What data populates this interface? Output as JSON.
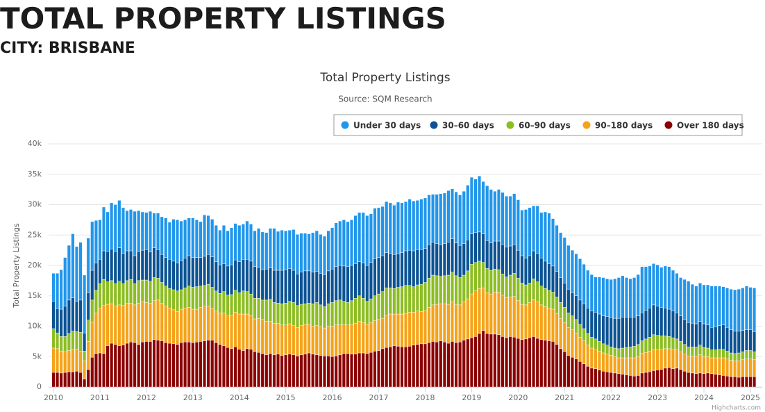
{
  "header": {
    "title": "TOTAL PROPERTY LISTINGS",
    "city": "CITY: BRISBANE"
  },
  "chart_data": {
    "type": "stacked_bar",
    "title": "Total Property Listings",
    "subtitle": "Source: SQM Research",
    "y_label": "Total Property Listings",
    "credit": "Highcharts.com",
    "categories": [
      "2010",
      null,
      null,
      null,
      null,
      null,
      null,
      null,
      null,
      null,
      null,
      null,
      "2011",
      null,
      null,
      null,
      null,
      null,
      null,
      null,
      null,
      null,
      null,
      null,
      "2012",
      null,
      null,
      null,
      null,
      null,
      null,
      null,
      null,
      null,
      null,
      null,
      "2013",
      null,
      null,
      null,
      null,
      null,
      null,
      null,
      null,
      null,
      null,
      null,
      "2014",
      null,
      null,
      null,
      null,
      null,
      null,
      null,
      null,
      null,
      null,
      null,
      "2015",
      null,
      null,
      null,
      null,
      null,
      null,
      null,
      null,
      null,
      null,
      null,
      "2016",
      null,
      null,
      null,
      null,
      null,
      null,
      null,
      null,
      null,
      null,
      null,
      "2017",
      null,
      null,
      null,
      null,
      null,
      null,
      null,
      null,
      null,
      null,
      null,
      "2018",
      null,
      null,
      null,
      null,
      null,
      null,
      null,
      null,
      null,
      null,
      null,
      "2019",
      null,
      null,
      null,
      null,
      null,
      null,
      null,
      null,
      null,
      null,
      null,
      "2020",
      null,
      null,
      null,
      null,
      null,
      null,
      null,
      null,
      null,
      null,
      null,
      "2021",
      null,
      null,
      null,
      null,
      null,
      null,
      null,
      null,
      null,
      null,
      null,
      "2022",
      null,
      null,
      null,
      null,
      null,
      null,
      null,
      null,
      null,
      null,
      null,
      "2023",
      null,
      null,
      null,
      null,
      null,
      null,
      null,
      null,
      null,
      null,
      null,
      "2024",
      null,
      null,
      null,
      null,
      null,
      null,
      null,
      null,
      null,
      null,
      null,
      "2025",
      null
    ],
    "series": [
      {
        "name": "Under 30 days",
        "color": "#2196eb",
        "values": [
          4600,
          5800,
          6500,
          8000,
          9000,
          10500,
          9000,
          9500,
          9500,
          9000,
          8000,
          7000,
          6500,
          7200,
          6500,
          7600,
          7700,
          7800,
          7500,
          6600,
          6800,
          7300,
          6700,
          6300,
          6100,
          6700,
          5700,
          6000,
          6200,
          6500,
          6100,
          6900,
          7100,
          6500,
          6300,
          6200,
          6500,
          6200,
          5900,
          6800,
          6400,
          6200,
          6000,
          5700,
          6300,
          5800,
          6100,
          6000,
          6000,
          5800,
          6300,
          6100,
          5900,
          6400,
          6200,
          6000,
          6500,
          6900,
          6400,
          6600,
          6400,
          6300,
          6700,
          6500,
          6400,
          6200,
          6100,
          6500,
          6700,
          6400,
          6300,
          6600,
          6800,
          7200,
          7300,
          7600,
          7400,
          7500,
          7900,
          8100,
          8300,
          8200,
          8000,
          8300,
          8200,
          8100,
          8400,
          8300,
          8100,
          8500,
          8200,
          8100,
          8400,
          8200,
          8100,
          8300,
          8300,
          8200,
          7900,
          8100,
          8400,
          8300,
          8500,
          8200,
          8400,
          8300,
          8600,
          9000,
          9300,
          8800,
          9200,
          8600,
          9000,
          8800,
          8200,
          8500,
          8600,
          8400,
          8200,
          8400,
          8300,
          7500,
          8000,
          7900,
          7400,
          7800,
          7500,
          8100,
          8300,
          7800,
          7600,
          7400,
          7500,
          7200,
          7000,
          6900,
          6800,
          6500,
          6200,
          6000,
          5800,
          6100,
          6300,
          6200,
          6300,
          6500,
          6700,
          6800,
          6500,
          6300,
          6500,
          6800,
          7600,
          7200,
          6900,
          6800,
          6800,
          6600,
          6900,
          7000,
          6700,
          6500,
          6300,
          6600,
          6800,
          6400,
          6200,
          6300,
          6400,
          6600,
          6800,
          6700,
          6500,
          6300,
          6500,
          6700,
          6800,
          6900,
          7000,
          7200,
          7000,
          7200
        ]
      },
      {
        "name": "30–60 days",
        "color": "#0b5394",
        "values": [
          4500,
          4000,
          4500,
          5000,
          5500,
          5500,
          5000,
          5300,
          3000,
          4500,
          4900,
          4500,
          4000,
          4700,
          5000,
          5200,
          5300,
          5500,
          5000,
          4900,
          4700,
          4600,
          4800,
          4900,
          5000,
          4800,
          4900,
          4700,
          4600,
          4700,
          4800,
          4700,
          4600,
          4800,
          4900,
          5000,
          4900,
          4800,
          4700,
          4800,
          4900,
          5000,
          4800,
          4700,
          4600,
          4800,
          4900,
          5000,
          5100,
          5200,
          5300,
          5400,
          5200,
          5100,
          5000,
          5100,
          5200,
          5300,
          5400,
          5500,
          5500,
          5400,
          5300,
          5200,
          5300,
          5400,
          5300,
          5200,
          5100,
          5200,
          5300,
          5400,
          5500,
          5600,
          5700,
          5800,
          5900,
          5800,
          5700,
          5600,
          5800,
          5900,
          6000,
          6100,
          6000,
          5900,
          5800,
          5700,
          5600,
          5500,
          5600,
          5700,
          5800,
          5900,
          5800,
          5700,
          5600,
          5500,
          5400,
          5300,
          5200,
          5300,
          5400,
          5500,
          5400,
          5300,
          5200,
          5100,
          5000,
          4900,
          4800,
          4700,
          4600,
          4500,
          4600,
          4700,
          4800,
          4900,
          4800,
          4700,
          4600,
          4500,
          4400,
          4500,
          4600,
          4700,
          4600,
          4500,
          4400,
          4300,
          4200,
          4100,
          4000,
          3900,
          3800,
          3900,
          4000,
          4100,
          4200,
          4300,
          4400,
          4500,
          4600,
          4700,
          4800,
          4900,
          5000,
          5100,
          5000,
          4900,
          4800,
          4700,
          4600,
          4700,
          4800,
          4900,
          4800,
          4700,
          4600,
          4500,
          4400,
          4300,
          4200,
          4100,
          4000,
          3900,
          3800,
          3900,
          3900,
          3800,
          3700,
          3800,
          3900,
          4000,
          3900,
          3800,
          3700,
          3600,
          3500,
          3400,
          3400,
          3300
        ]
      },
      {
        "name": "60–90 days",
        "color": "#8dbd24",
        "values": [
          3200,
          2600,
          2400,
          2500,
          2800,
          3000,
          2900,
          3100,
          1600,
          3500,
          3600,
          3700,
          4000,
          4300,
          3700,
          3800,
          3700,
          3900,
          3600,
          3700,
          3900,
          3500,
          3700,
          3600,
          3700,
          3600,
          3800,
          3600,
          3400,
          3300,
          3200,
          3300,
          3400,
          3200,
          3300,
          3500,
          3600,
          3700,
          3500,
          3400,
          3600,
          3400,
          3300,
          3200,
          3500,
          3300,
          3400,
          3600,
          3500,
          3800,
          3700,
          3600,
          3400,
          3300,
          3200,
          3500,
          3600,
          3400,
          3300,
          3500,
          3600,
          3700,
          3800,
          3600,
          3500,
          3400,
          3500,
          3700,
          3800,
          3600,
          3500,
          3700,
          3900,
          4000,
          4100,
          3800,
          3700,
          3900,
          4100,
          4200,
          4000,
          3800,
          3900,
          4100,
          4200,
          4400,
          4500,
          4300,
          4200,
          4400,
          4500,
          4600,
          4400,
          4200,
          4300,
          4500,
          4600,
          4800,
          4900,
          4700,
          4500,
          4600,
          4800,
          4900,
          4700,
          4500,
          4400,
          4600,
          4900,
          4700,
          4500,
          4200,
          4000,
          3900,
          3800,
          3700,
          3500,
          3400,
          3600,
          3800,
          3700,
          3500,
          3300,
          3200,
          3400,
          3300,
          3100,
          3000,
          2900,
          2800,
          2700,
          2600,
          2500,
          2400,
          2300,
          2200,
          2100,
          2000,
          1900,
          1800,
          1700,
          1600,
          1500,
          1500,
          1400,
          1400,
          1500,
          1600,
          1700,
          1800,
          1900,
          2000,
          2100,
          2200,
          2300,
          2400,
          2300,
          2200,
          2100,
          2000,
          1900,
          1800,
          1700,
          1600,
          1500,
          1500,
          1500,
          1600,
          1500,
          1400,
          1300,
          1300,
          1400,
          1400,
          1300,
          1200,
          1200,
          1300,
          1300,
          1400,
          1400,
          1300
        ]
      },
      {
        "name": "90–180 days",
        "color": "#f5a31a",
        "values": [
          4000,
          3900,
          3600,
          3400,
          3500,
          3700,
          3600,
          3500,
          3000,
          4600,
          5800,
          6700,
          7400,
          7900,
          6800,
          6500,
          6300,
          6700,
          6500,
          6600,
          6400,
          6200,
          6800,
          6600,
          6400,
          6300,
          6400,
          6600,
          6200,
          6000,
          5800,
          5600,
          5400,
          5500,
          5600,
          5700,
          5500,
          5400,
          5600,
          5700,
          5600,
          5300,
          5200,
          5200,
          5400,
          5300,
          5500,
          5700,
          5800,
          6000,
          5700,
          5500,
          5400,
          5600,
          5600,
          5500,
          5300,
          5200,
          5100,
          5000,
          4900,
          5000,
          4800,
          4700,
          4800,
          4900,
          4700,
          4600,
          4800,
          4700,
          4600,
          4900,
          5000,
          5100,
          4900,
          4800,
          4700,
          4900,
          5100,
          5200,
          5000,
          4800,
          4900,
          5000,
          5100,
          5000,
          5300,
          5400,
          5200,
          5300,
          5400,
          5500,
          5600,
          5400,
          5500,
          5300,
          5500,
          5800,
          6000,
          6200,
          6100,
          6300,
          6400,
          6500,
          6300,
          6100,
          6300,
          6600,
          7200,
          7500,
          7400,
          7000,
          6700,
          6600,
          6900,
          7000,
          6800,
          6600,
          6500,
          6700,
          6200,
          5800,
          5600,
          5800,
          6100,
          6000,
          5700,
          5500,
          5400,
          5300,
          5100,
          5000,
          4800,
          4600,
          4500,
          4300,
          4000,
          3800,
          3500,
          3300,
          3200,
          3100,
          3000,
          2900,
          2800,
          2700,
          2600,
          2700,
          2800,
          2900,
          3000,
          3100,
          3200,
          3300,
          3400,
          3500,
          3400,
          3300,
          3200,
          3100,
          3200,
          3000,
          2900,
          2800,
          2700,
          2800,
          2900,
          3000,
          2800,
          2700,
          2600,
          2700,
          2800,
          2900,
          2800,
          2700,
          2600,
          2700,
          2800,
          2900,
          2900,
          2800
        ]
      },
      {
        "name": "Over 180 days",
        "color": "#8b0000",
        "values": [
          2400,
          2400,
          2300,
          2400,
          2500,
          2500,
          2600,
          2400,
          1300,
          2900,
          4900,
          5500,
          5600,
          5500,
          6800,
          7200,
          7000,
          6800,
          6900,
          7200,
          7400,
          7300,
          7000,
          7400,
          7500,
          7500,
          7800,
          7700,
          7600,
          7300,
          7200,
          7100,
          7000,
          7300,
          7400,
          7400,
          7300,
          7400,
          7500,
          7600,
          7700,
          7700,
          7300,
          7000,
          6800,
          6500,
          6300,
          6600,
          6200,
          6000,
          6300,
          6200,
          5800,
          5700,
          5500,
          5300,
          5500,
          5300,
          5400,
          5200,
          5300,
          5400,
          5300,
          5100,
          5300,
          5400,
          5600,
          5400,
          5300,
          5200,
          5100,
          5100,
          5000,
          5100,
          5300,
          5500,
          5500,
          5400,
          5400,
          5600,
          5600,
          5500,
          5700,
          5900,
          6000,
          6300,
          6500,
          6600,
          6800,
          6700,
          6600,
          6600,
          6700,
          6900,
          7000,
          7100,
          7100,
          7300,
          7500,
          7400,
          7600,
          7400,
          7200,
          7500,
          7300,
          7400,
          7700,
          7900,
          8100,
          8300,
          8800,
          9300,
          8800,
          8700,
          8700,
          8600,
          8300,
          8100,
          8300,
          8200,
          8000,
          7800,
          7900,
          8100,
          8300,
          8000,
          7800,
          7700,
          7600,
          7500,
          7000,
          6300,
          5800,
          5200,
          4900,
          4600,
          4200,
          3800,
          3400,
          3100,
          3000,
          2800,
          2600,
          2500,
          2400,
          2300,
          2200,
          2100,
          2000,
          1900,
          1800,
          1900,
          2300,
          2400,
          2500,
          2700,
          2800,
          2900,
          3100,
          3200,
          3000,
          3100,
          2900,
          2600,
          2400,
          2300,
          2200,
          2300,
          2200,
          2300,
          2200,
          2100,
          2000,
          1900,
          1800,
          1700,
          1700,
          1600,
          1700,
          1700,
          1700,
          1700
        ]
      }
    ],
    "ylim": [
      0,
      40000
    ],
    "yticks": [
      0,
      {
        "value": 5000,
        "label": "5k"
      },
      {
        "value": 10000,
        "label": "10k"
      },
      {
        "value": 15000,
        "label": "15k"
      },
      {
        "value": 20000,
        "label": "20k"
      },
      {
        "value": 25000,
        "label": "25k"
      },
      {
        "value": 30000,
        "label": "30k"
      },
      {
        "value": 35000,
        "label": "35k"
      },
      {
        "value": 40000,
        "label": "40k"
      }
    ],
    "grid": true,
    "legend": "top"
  }
}
